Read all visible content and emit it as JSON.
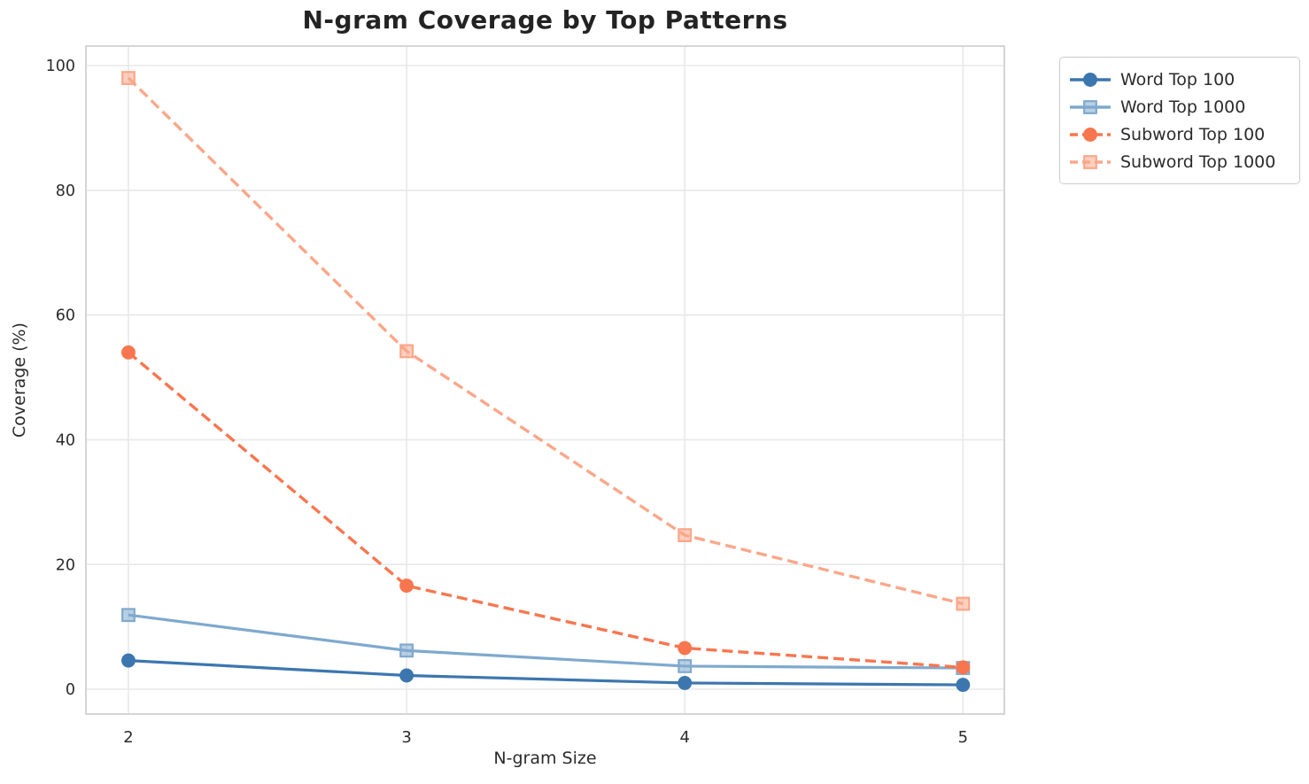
{
  "chart_data": {
    "type": "line",
    "title": "N-gram Coverage by Top Patterns",
    "xlabel": "N-gram Size",
    "ylabel": "Coverage (%)",
    "x": [
      2,
      3,
      4,
      5
    ],
    "xticks": [
      "2",
      "3",
      "4",
      "5"
    ],
    "xtick_values": [
      2,
      3,
      4,
      5
    ],
    "yticks": [
      "0",
      "20",
      "40",
      "60",
      "80",
      "100"
    ],
    "ytick_values": [
      0,
      20,
      40,
      60,
      80,
      100
    ],
    "xlim": [
      1.85,
      5.15
    ],
    "ylim": [
      -4,
      103
    ],
    "grid": true,
    "legend_position": "outside-upper-right",
    "series": [
      {
        "name": "Word Top 100",
        "values": [
          4.6,
          2.2,
          1.0,
          0.7
        ],
        "color": "#3C76AF",
        "line_style": "solid",
        "marker": "circle"
      },
      {
        "name": "Word Top 1000",
        "values": [
          11.9,
          6.2,
          3.7,
          3.4
        ],
        "color": "#7FA9CE",
        "line_style": "solid",
        "marker": "square"
      },
      {
        "name": "Subword Top 100",
        "values": [
          54.0,
          16.6,
          6.6,
          3.5
        ],
        "color": "#F8764F",
        "line_style": "dashed",
        "marker": "circle"
      },
      {
        "name": "Subword Top 1000",
        "values": [
          98.0,
          54.2,
          24.7,
          13.7
        ],
        "color": "#FBA78A",
        "line_style": "dashed",
        "marker": "square"
      }
    ],
    "colors": {
      "background": "#ffffff",
      "grid": "#e8e8e8",
      "spine": "#d5d5d5",
      "tick_text": "#2b2b2b",
      "title_text": "#232323"
    }
  }
}
